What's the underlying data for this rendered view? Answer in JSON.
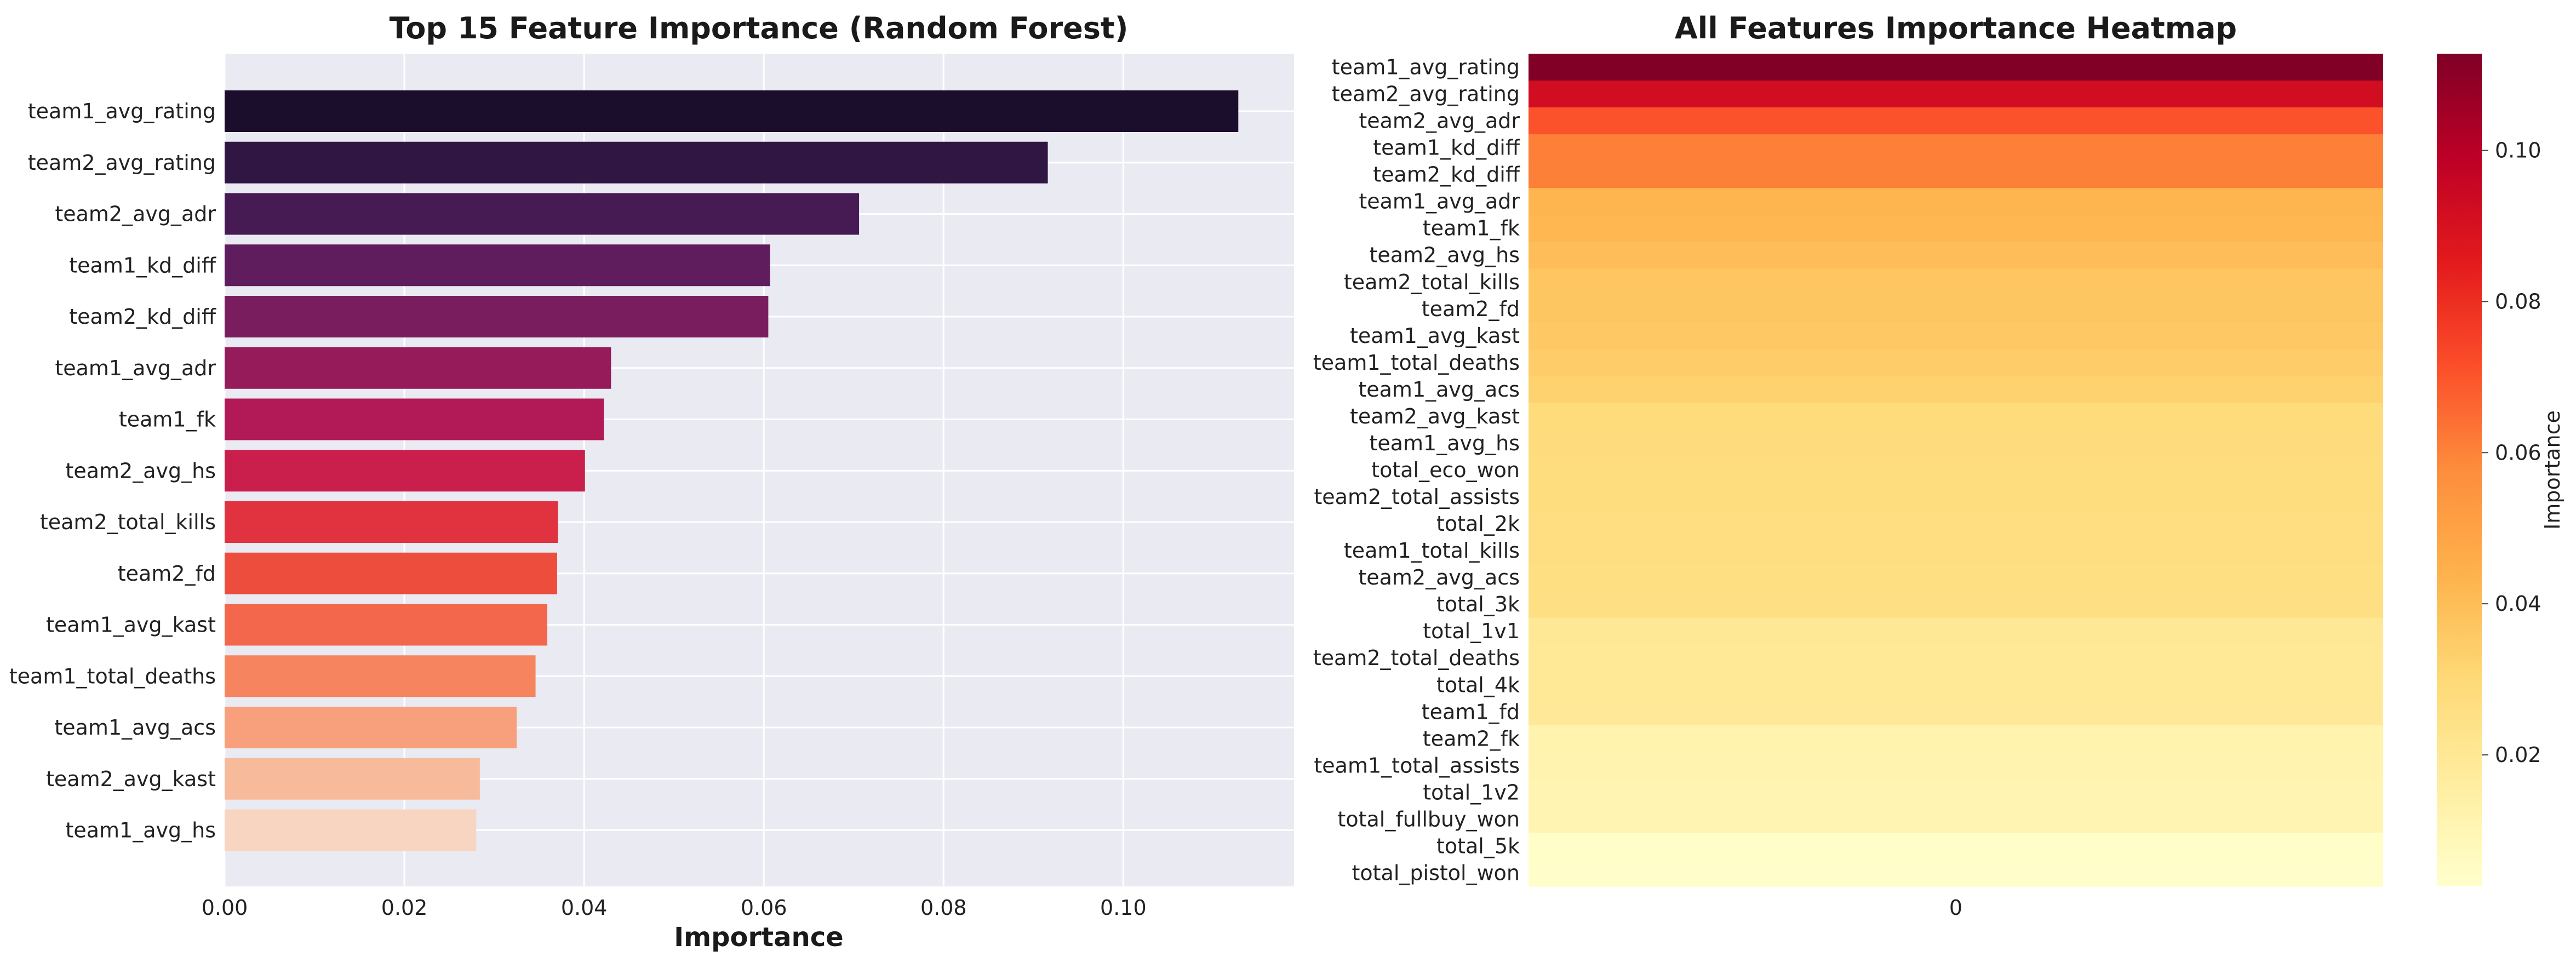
{
  "chart_data": [
    {
      "type": "bar",
      "orientation": "horizontal",
      "title": "Top 15 Feature Importance (Random Forest)",
      "xlabel": "Importance",
      "ylabel": "",
      "xlim": [
        0,
        0.119
      ],
      "xticks": [
        "0.00",
        "0.02",
        "0.04",
        "0.06",
        "0.08",
        "0.10"
      ],
      "grid": true,
      "categories": [
        "team1_avg_rating",
        "team2_avg_rating",
        "team2_avg_adr",
        "team1_kd_diff",
        "team2_kd_diff",
        "team1_avg_adr",
        "team1_fk",
        "team2_avg_hs",
        "team2_total_kills",
        "team2_fd",
        "team1_avg_kast",
        "team1_total_deaths",
        "team1_avg_acs",
        "team2_avg_kast",
        "team1_avg_hs"
      ],
      "values": [
        0.1128,
        0.0916,
        0.0706,
        0.0607,
        0.0605,
        0.043,
        0.0422,
        0.0401,
        0.0371,
        0.037,
        0.0359,
        0.0346,
        0.0325,
        0.0284,
        0.028
      ],
      "colors": [
        "#1a0e2c",
        "#2f1643",
        "#461b54",
        "#601d5d",
        "#7a1d5e",
        "#951b5b",
        "#b11a57",
        "#ca1f4c",
        "#e0323f",
        "#ed4d3c",
        "#f3684c",
        "#f6845f",
        "#f7a07b",
        "#f7bb9c",
        "#f8d5c1"
      ]
    },
    {
      "type": "heatmap",
      "title": "All Features Importance Heatmap",
      "xticks": [
        "0"
      ],
      "colorbar_label": "Importance",
      "colorbar_ticks": [
        "0.02",
        "0.04",
        "0.06",
        "0.08",
        "0.10"
      ],
      "colormap": "YlOrRd",
      "vmin": 0.0026,
      "vmax": 0.1128,
      "rows": [
        "team1_avg_rating",
        "team2_avg_rating",
        "team2_avg_adr",
        "team1_kd_diff",
        "team2_kd_diff",
        "team1_avg_adr",
        "team1_fk",
        "team2_avg_hs",
        "team2_total_kills",
        "team2_fd",
        "team1_avg_kast",
        "team1_total_deaths",
        "team1_avg_acs",
        "team2_avg_kast",
        "team1_avg_hs",
        "total_eco_won",
        "team2_total_assists",
        "total_2k",
        "team1_total_kills",
        "team2_avg_acs",
        "total_3k",
        "total_1v1",
        "team2_total_deaths",
        "total_4k",
        "team1_fd",
        "team2_fk",
        "team1_total_assists",
        "total_1v2",
        "total_fullbuy_won",
        "total_5k",
        "total_pistol_won"
      ],
      "values": [
        0.1128,
        0.0916,
        0.0706,
        0.0607,
        0.0605,
        0.043,
        0.0422,
        0.0401,
        0.0371,
        0.037,
        0.0359,
        0.0346,
        0.0325,
        0.0284,
        0.028,
        0.0276,
        0.0272,
        0.0268,
        0.0265,
        0.0262,
        0.0258,
        0.02,
        0.0196,
        0.0192,
        0.0188,
        0.012,
        0.0116,
        0.0112,
        0.0108,
        0.004,
        0.003
      ]
    }
  ]
}
